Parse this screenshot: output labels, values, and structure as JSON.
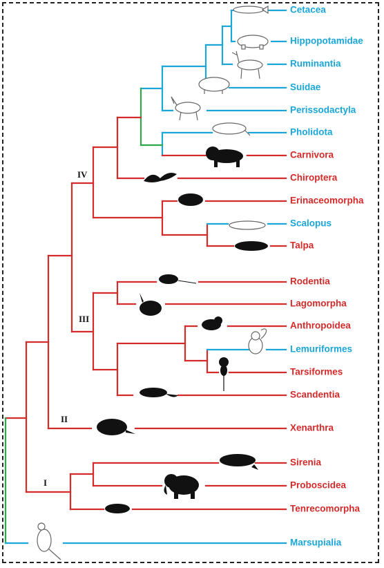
{
  "colors": {
    "placental": "#d42a2a",
    "laurasiatheria": "#1aa6d8",
    "transition": "#2aa84a",
    "silhouette": "#111111",
    "outline": "#666666"
  },
  "clade_labels": [
    "IV",
    "III",
    "II",
    "I"
  ],
  "taxa": [
    {
      "name": "Cetacea",
      "color": "laurasiatheria",
      "icon": "whale-icon"
    },
    {
      "name": "Hippopotamidae",
      "color": "laurasiatheria",
      "icon": "hippo-icon"
    },
    {
      "name": "Ruminantia",
      "color": "laurasiatheria",
      "icon": "deer-icon"
    },
    {
      "name": "Suidae",
      "color": "laurasiatheria",
      "icon": "pig-icon"
    },
    {
      "name": "Perissodactyla",
      "color": "laurasiatheria",
      "icon": "horse-icon"
    },
    {
      "name": "Pholidota",
      "color": "laurasiatheria",
      "icon": "pangolin-icon"
    },
    {
      "name": "Carnivora",
      "color": "placental",
      "icon": "lion-icon"
    },
    {
      "name": "Chiroptera",
      "color": "placental",
      "icon": "bat-icon"
    },
    {
      "name": "Erinaceomorpha",
      "color": "placental",
      "icon": "hedgehog-icon"
    },
    {
      "name": "Scalopus",
      "color": "laurasiatheria",
      "icon": "mole-outline-icon"
    },
    {
      "name": "Talpa",
      "color": "placental",
      "icon": "mole-icon"
    },
    {
      "name": "Rodentia",
      "color": "placental",
      "icon": "rat-icon"
    },
    {
      "name": "Lagomorpha",
      "color": "placental",
      "icon": "rabbit-icon"
    },
    {
      "name": "Anthropoidea",
      "color": "placental",
      "icon": "monkey-icon"
    },
    {
      "name": "Lemuriformes",
      "color": "laurasiatheria",
      "icon": "lemur-icon"
    },
    {
      "name": "Tarsiformes",
      "color": "placental",
      "icon": "tarsier-icon"
    },
    {
      "name": "Scandentia",
      "color": "placental",
      "icon": "treeshrew-icon"
    },
    {
      "name": "Xenarthra",
      "color": "placental",
      "icon": "armadillo-icon"
    },
    {
      "name": "Sirenia",
      "color": "placental",
      "icon": "manatee-icon"
    },
    {
      "name": "Proboscidea",
      "color": "placental",
      "icon": "elephant-icon"
    },
    {
      "name": "Tenrecomorpha",
      "color": "placental",
      "icon": "tenrec-icon"
    },
    {
      "name": "Marsupialia",
      "color": "laurasiatheria",
      "icon": "kangaroo-icon"
    }
  ]
}
